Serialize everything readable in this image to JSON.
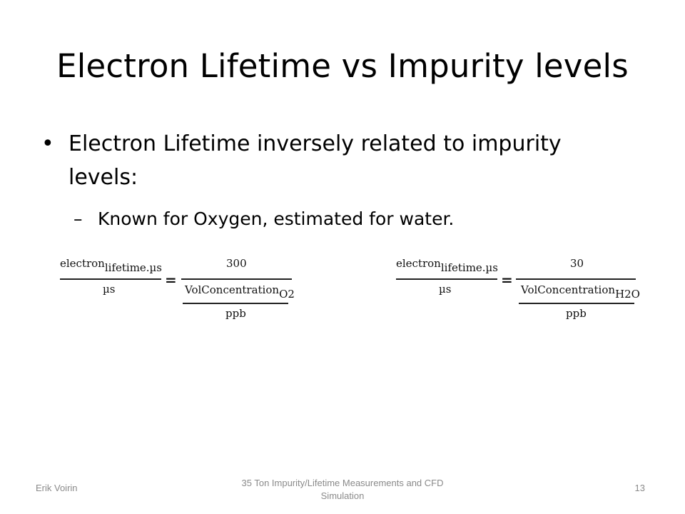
{
  "slide": {
    "title": "Electron Lifetime vs Impurity levels",
    "bullet": {
      "marker": "•",
      "text": "Electron Lifetime inversely related to impurity levels:"
    },
    "sub_bullet": {
      "marker": "–",
      "text": "Known for Oxygen, estimated for water."
    }
  },
  "formulas": [
    {
      "lhs_main": "electron",
      "lhs_sub": "lifetime.µs",
      "lhs_den": "µs",
      "equals": "=",
      "rhs_num": "300",
      "rhs_conc": "VolConcentration",
      "rhs_conc_sub": "O2",
      "rhs_den": "ppb"
    },
    {
      "lhs_main": "electron",
      "lhs_sub": "lifetime.µs",
      "lhs_den": "µs",
      "equals": "=",
      "rhs_num": "30",
      "rhs_conc": "VolConcentration",
      "rhs_conc_sub": "H2O",
      "rhs_den": "ppb"
    }
  ],
  "footer": {
    "author": "Erik Voirin",
    "center": "35 Ton Impurity/Lifetime Measurements and CFD Simulation",
    "page_number": "13"
  }
}
